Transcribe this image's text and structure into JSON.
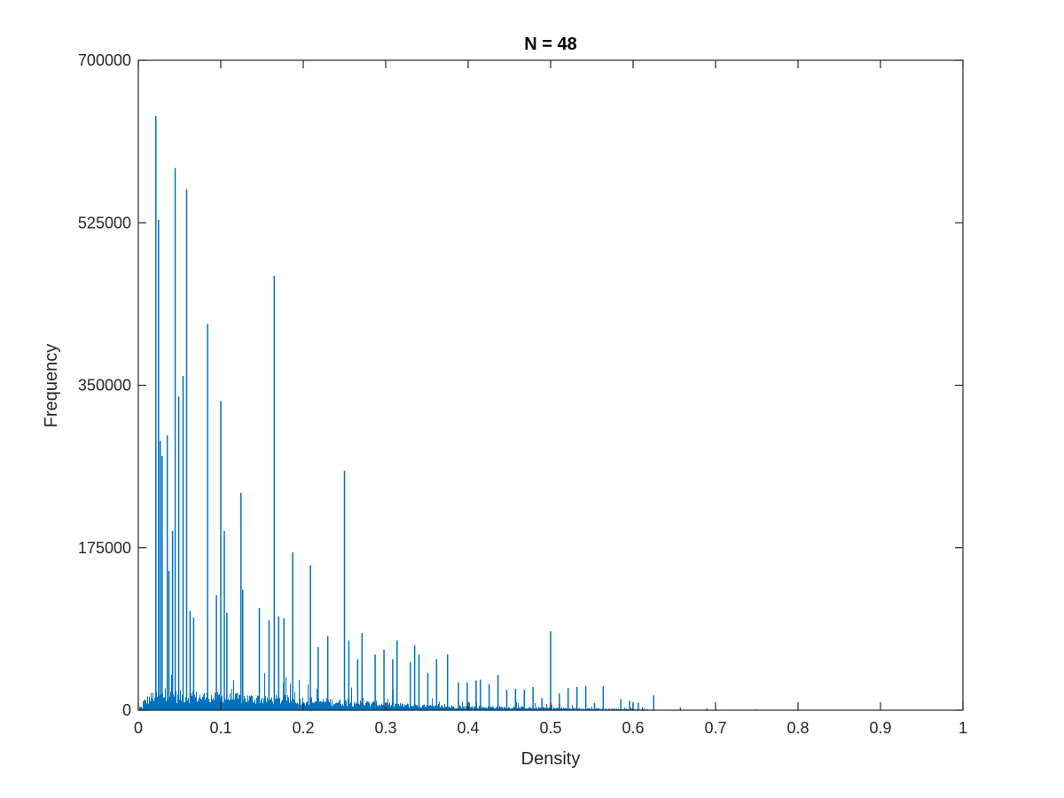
{
  "chart_data": {
    "type": "bar",
    "title": "N = 48",
    "xlabel": "Density",
    "ylabel": "Frequency",
    "xlim": [
      0,
      1
    ],
    "ylim": [
      0,
      700000
    ],
    "xticks": [
      0,
      0.1,
      0.2,
      0.3,
      0.4,
      0.5,
      0.6,
      0.7,
      0.8,
      0.9,
      1
    ],
    "xtick_labels": [
      "0",
      "0.1",
      "0.2",
      "0.3",
      "0.4",
      "0.5",
      "0.6",
      "0.7",
      "0.8",
      "0.9",
      "1"
    ],
    "yticks": [
      0,
      175000,
      350000,
      525000,
      700000
    ],
    "ytick_labels": [
      "0",
      "175000",
      "350000",
      "525000",
      "700000"
    ],
    "grid": false,
    "bar_color": "#0072BD",
    "axis_color": "#262626",
    "series": [
      {
        "x": [
          0.0213,
          0.0245,
          0.0266,
          0.0288,
          0.0351,
          0.0372,
          0.0415,
          0.0447,
          0.049,
          0.0543,
          0.0586,
          0.0628,
          0.0671,
          0.0841,
          0.0947,
          0.1,
          0.1043,
          0.1074,
          0.1245,
          0.1266,
          0.1468,
          0.1585,
          0.1649,
          0.1702,
          0.1766,
          0.1872,
          0.2087,
          0.2181,
          0.2298,
          0.25,
          0.2553,
          0.266,
          0.2713,
          0.2872,
          0.2979,
          0.3085,
          0.3138,
          0.3298,
          0.3351,
          0.3404,
          0.3511,
          0.3617,
          0.375,
          0.3883,
          0.3989,
          0.4096,
          0.4149,
          0.4255,
          0.4362,
          0.4468,
          0.4574,
          0.4681,
          0.4787,
          0.4894,
          0.5,
          0.5106,
          0.5213,
          0.5319,
          0.5426,
          0.5532,
          0.5638,
          0.5851,
          0.5957,
          0.6064,
          0.625,
          0.6574,
          0.6894,
          0.75
        ],
        "values": [
          640000,
          528000,
          290000,
          274000,
          296000,
          150000,
          193000,
          584000,
          338000,
          360000,
          561000,
          107000,
          100000,
          416000,
          124000,
          333000,
          193000,
          105000,
          234000,
          130000,
          110000,
          97000,
          468000,
          101000,
          99000,
          170000,
          156000,
          68000,
          80000,
          258000,
          75000,
          55000,
          83000,
          60000,
          65000,
          55000,
          75000,
          52000,
          70000,
          60000,
          40000,
          55000,
          60000,
          30000,
          30000,
          32000,
          33000,
          28000,
          38000,
          22000,
          23000,
          22000,
          25000,
          13000,
          85000,
          18000,
          24000,
          25000,
          26000,
          8000,
          26000,
          12000,
          10000,
          8000,
          16000,
          3000,
          2000,
          1000
        ]
      }
    ]
  }
}
